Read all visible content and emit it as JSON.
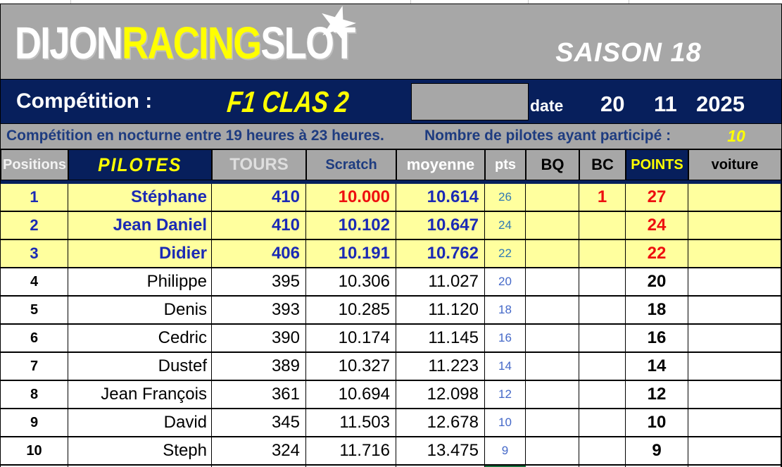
{
  "brand": {
    "name_part1": "DIJON",
    "name_part2": "RACING",
    "name_part3": "SLOT",
    "star": "★",
    "season": "SAISON 18"
  },
  "competition": {
    "label": "Compétition :",
    "name": "F1 CLAS 2",
    "date_label": "date",
    "date_day": "20",
    "date_month": "11",
    "date_year": "2025"
  },
  "info": {
    "schedule": "Compétition en nocturne entre 19 heures à 23 heures.",
    "participants_label": "Nombre de pilotes ayant participé :",
    "participants_count": "10"
  },
  "table": {
    "headers": {
      "positions": "Positions",
      "pilotes": "PILOTES",
      "tours": "TOURS",
      "scratch": "Scratch",
      "moyenne": "moyenne",
      "pts": "pts",
      "bq": "BQ",
      "bc": "BC",
      "points": "POINTS",
      "voiture": "voiture"
    },
    "rows": [
      {
        "pos": "1",
        "name": "Stéphane",
        "tours": "410",
        "scratch": "10.000",
        "moyenne": "10.614",
        "pts": "26",
        "bq": "",
        "bc": "1",
        "points": "27",
        "voiture": "",
        "highlight": true,
        "scratch_red": true
      },
      {
        "pos": "2",
        "name": "Jean Daniel",
        "tours": "410",
        "scratch": "10.102",
        "moyenne": "10.647",
        "pts": "24",
        "bq": "",
        "bc": "",
        "points": "24",
        "voiture": "",
        "highlight": true,
        "scratch_red": false
      },
      {
        "pos": "3",
        "name": "Didier",
        "tours": "406",
        "scratch": "10.191",
        "moyenne": "10.762",
        "pts": "22",
        "bq": "",
        "bc": "",
        "points": "22",
        "voiture": "",
        "highlight": true,
        "scratch_red": false
      },
      {
        "pos": "4",
        "name": "Philippe",
        "tours": "395",
        "scratch": "10.306",
        "moyenne": "11.027",
        "pts": "20",
        "bq": "",
        "bc": "",
        "points": "20",
        "voiture": "",
        "highlight": false,
        "scratch_red": false
      },
      {
        "pos": "5",
        "name": "Denis",
        "tours": "393",
        "scratch": "10.285",
        "moyenne": "11.120",
        "pts": "18",
        "bq": "",
        "bc": "",
        "points": "18",
        "voiture": "",
        "highlight": false,
        "scratch_red": false
      },
      {
        "pos": "6",
        "name": "Cedric",
        "tours": "390",
        "scratch": "10.174",
        "moyenne": "11.145",
        "pts": "16",
        "bq": "",
        "bc": "",
        "points": "16",
        "voiture": "",
        "highlight": false,
        "scratch_red": false
      },
      {
        "pos": "7",
        "name": "Dustef",
        "tours": "389",
        "scratch": "10.327",
        "moyenne": "11.223",
        "pts": "14",
        "bq": "",
        "bc": "",
        "points": "14",
        "voiture": "",
        "highlight": false,
        "scratch_red": false
      },
      {
        "pos": "8",
        "name": "Jean François",
        "tours": "361",
        "scratch": "10.694",
        "moyenne": "12.098",
        "pts": "12",
        "bq": "",
        "bc": "",
        "points": "12",
        "voiture": "",
        "highlight": false,
        "scratch_red": false
      },
      {
        "pos": "9",
        "name": "David",
        "tours": "345",
        "scratch": "11.503",
        "moyenne": "12.678",
        "pts": "10",
        "bq": "",
        "bc": "",
        "points": "10",
        "voiture": "",
        "highlight": false,
        "scratch_red": false
      },
      {
        "pos": "10",
        "name": "Steph",
        "tours": "324",
        "scratch": "11.716",
        "moyenne": "13.475",
        "pts": "9",
        "bq": "",
        "bc": "",
        "points": "9",
        "voiture": "",
        "highlight": false,
        "scratch_red": false
      }
    ]
  },
  "colors": {
    "navy": "#071f5c",
    "yellow": "#ffff00",
    "rowyellow": "#ffff9e",
    "gray": "#a7a7a7",
    "nameblue": "#1b2ab5",
    "darkblue": "#1e3c80",
    "red": "#ee0f0f",
    "ptsblue": "#4468c8",
    "ptsbluehl": "#3079b4",
    "green": "#1a7340"
  }
}
